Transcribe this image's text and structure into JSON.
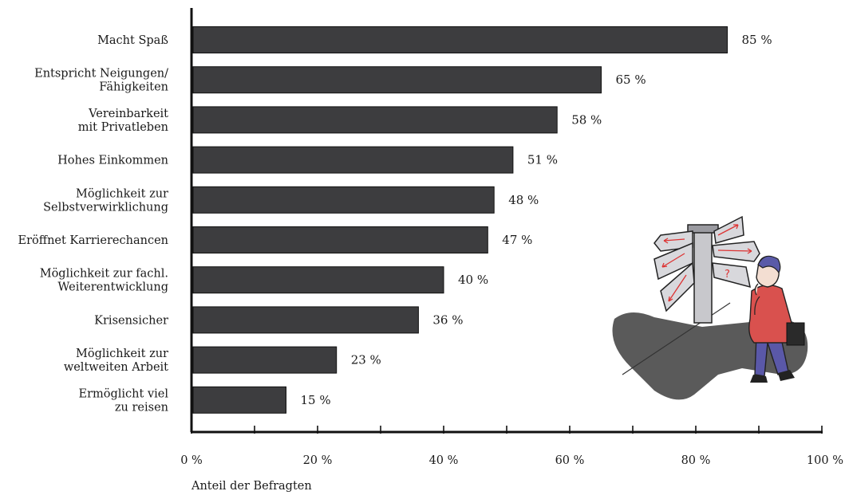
{
  "chart_data": {
    "type": "bar",
    "orientation": "horizontal",
    "categories": [
      [
        "Macht Spaß"
      ],
      [
        "Entspricht Neigungen/",
        "Fähigkeiten"
      ],
      [
        "Vereinbarkeit",
        "mit Privatleben"
      ],
      [
        "Hohes Einkommen"
      ],
      [
        "Möglichkeit zur",
        "Selbstverwirklichung"
      ],
      [
        "Eröffnet Karrierechancen"
      ],
      [
        "Möglichkeit zur fachl.",
        "Weiterentwicklung"
      ],
      [
        "Krisensicher"
      ],
      [
        "Möglichkeit zur",
        "weltweiten Arbeit"
      ],
      [
        "Ermöglicht viel",
        "zu  reisen"
      ]
    ],
    "values": [
      85,
      65,
      58,
      51,
      48,
      47,
      40,
      36,
      23,
      15
    ],
    "value_labels": [
      "85 %",
      "65 %",
      "58 %",
      "51 %",
      "48 %",
      "47 %",
      "40 %",
      "36 %",
      "23 %",
      "15 %"
    ],
    "xlim": [
      0,
      100
    ],
    "x_ticks": [
      0,
      20,
      40,
      60,
      80,
      100
    ],
    "x_tick_labels": [
      "0 %",
      "20 %",
      "40 %",
      "60 %",
      "80 %",
      "100 %"
    ],
    "xlabel": "Anteil der Befragten",
    "ylabel": "",
    "title": "",
    "grid": false,
    "bar_color": "#3d3d3f",
    "bar_edge_color": "#111111"
  },
  "illustration": {
    "icon": "signpost-person-icon",
    "colors": {
      "shadow": "#5a5a5a",
      "coat": "#d9514e",
      "trousers": "#5a58a8",
      "sign": "#d8d8dc",
      "arrows": "#d33"
    }
  }
}
